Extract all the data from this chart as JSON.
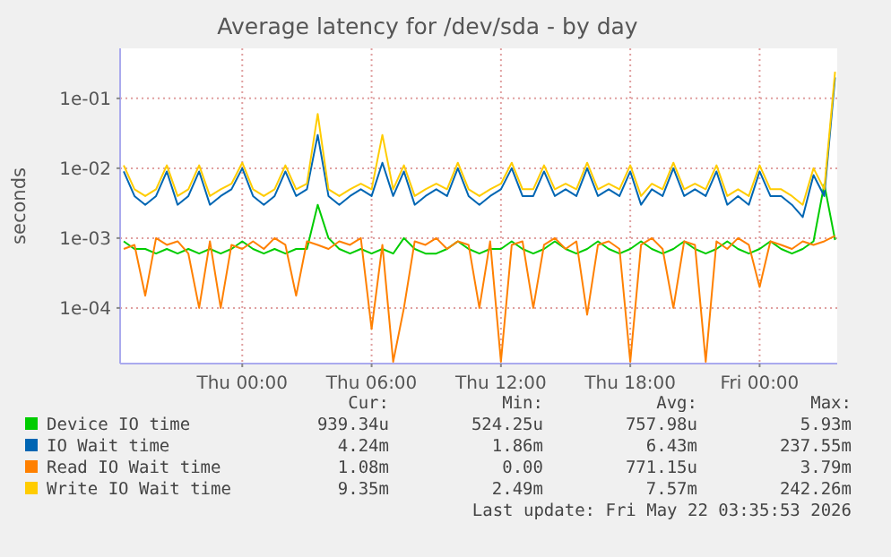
{
  "chart_data": {
    "type": "line",
    "title": "Average latency for /dev/sda - by day",
    "ylabel": "seconds",
    "log": "y",
    "grid": true,
    "legend": "bottom",
    "marker": "none",
    "line_style": "solid",
    "x": [
      "2026-05-20T18:30",
      "2026-05-20T19:00",
      "2026-05-20T19:30",
      "2026-05-20T20:00",
      "2026-05-20T20:30",
      "2026-05-20T21:00",
      "2026-05-20T21:30",
      "2026-05-20T22:00",
      "2026-05-20T22:30",
      "2026-05-20T23:00",
      "2026-05-20T23:30",
      "2026-05-21T00:00",
      "2026-05-21T00:30",
      "2026-05-21T01:00",
      "2026-05-21T01:30",
      "2026-05-21T02:00",
      "2026-05-21T02:30",
      "2026-05-21T03:00",
      "2026-05-21T03:30",
      "2026-05-21T04:00",
      "2026-05-21T04:30",
      "2026-05-21T05:00",
      "2026-05-21T05:30",
      "2026-05-21T06:00",
      "2026-05-21T06:30",
      "2026-05-21T07:00",
      "2026-05-21T07:30",
      "2026-05-21T08:00",
      "2026-05-21T08:30",
      "2026-05-21T09:00",
      "2026-05-21T09:30",
      "2026-05-21T10:00",
      "2026-05-21T10:30",
      "2026-05-21T11:00",
      "2026-05-21T11:30",
      "2026-05-21T12:00",
      "2026-05-21T12:30",
      "2026-05-21T13:00",
      "2026-05-21T13:30",
      "2026-05-21T14:00",
      "2026-05-21T14:30",
      "2026-05-21T15:00",
      "2026-05-21T15:30",
      "2026-05-21T16:00",
      "2026-05-21T16:30",
      "2026-05-21T17:00",
      "2026-05-21T17:30",
      "2026-05-21T18:00",
      "2026-05-21T18:30",
      "2026-05-21T19:00",
      "2026-05-21T19:30",
      "2026-05-21T20:00",
      "2026-05-21T20:30",
      "2026-05-21T21:00",
      "2026-05-21T21:30",
      "2026-05-21T22:00",
      "2026-05-21T22:30",
      "2026-05-21T23:00",
      "2026-05-21T23:30",
      "2026-05-22T00:00",
      "2026-05-22T00:30",
      "2026-05-22T01:00",
      "2026-05-22T01:30",
      "2026-05-22T02:00",
      "2026-05-22T02:30",
      "2026-05-22T03:00",
      "2026-05-22T03:30"
    ],
    "xlim": [
      "2026-05-20T18:20",
      "2026-05-22T03:36"
    ],
    "xticks": [
      {
        "value": "2026-05-21T00:00",
        "label": "Thu 00:00"
      },
      {
        "value": "2026-05-21T06:00",
        "label": "Thu 06:00"
      },
      {
        "value": "2026-05-21T12:00",
        "label": "Thu 12:00"
      },
      {
        "value": "2026-05-21T18:00",
        "label": "Thu 18:00"
      },
      {
        "value": "2026-05-22T00:00",
        "label": "Fri 00:00"
      }
    ],
    "ylim": [
      1.6e-05,
      0.52
    ],
    "yticks": [
      {
        "value": 0.0001,
        "label": "1e-04"
      },
      {
        "value": 0.001,
        "label": "1e-03"
      },
      {
        "value": 0.01,
        "label": "1e-02"
      },
      {
        "value": 0.1,
        "label": "1e-01"
      }
    ],
    "series": [
      {
        "name": "Device IO time",
        "color": "#00cc00",
        "values": [
          0.0009,
          0.0007,
          0.0007,
          0.0006,
          0.0007,
          0.0006,
          0.0007,
          0.0006,
          0.0007,
          0.0006,
          0.0007,
          0.0009,
          0.0007,
          0.0006,
          0.0007,
          0.0006,
          0.0007,
          0.0007,
          0.003,
          0.001,
          0.0007,
          0.0006,
          0.0007,
          0.0006,
          0.0007,
          0.0006,
          0.001,
          0.0007,
          0.0006,
          0.0006,
          0.0007,
          0.0009,
          0.0007,
          0.0006,
          0.0007,
          0.0007,
          0.0009,
          0.0007,
          0.0006,
          0.0007,
          0.0009,
          0.0007,
          0.0006,
          0.0007,
          0.0009,
          0.0007,
          0.0006,
          0.0007,
          0.0009,
          0.0007,
          0.0006,
          0.0007,
          0.0009,
          0.0007,
          0.0006,
          0.0007,
          0.0009,
          0.0007,
          0.0006,
          0.0007,
          0.0009,
          0.0007,
          0.0006,
          0.0007,
          0.0009,
          0.0059,
          0.00094
        ]
      },
      {
        "name": "IO Wait time",
        "color": "#0066b3",
        "values": [
          0.009,
          0.004,
          0.003,
          0.004,
          0.009,
          0.003,
          0.004,
          0.009,
          0.003,
          0.004,
          0.005,
          0.01,
          0.004,
          0.003,
          0.004,
          0.009,
          0.004,
          0.005,
          0.03,
          0.004,
          0.003,
          0.004,
          0.005,
          0.004,
          0.012,
          0.004,
          0.009,
          0.003,
          0.004,
          0.005,
          0.004,
          0.01,
          0.004,
          0.003,
          0.004,
          0.005,
          0.01,
          0.004,
          0.004,
          0.009,
          0.004,
          0.005,
          0.004,
          0.01,
          0.004,
          0.005,
          0.004,
          0.009,
          0.003,
          0.005,
          0.004,
          0.01,
          0.004,
          0.005,
          0.004,
          0.009,
          0.003,
          0.004,
          0.003,
          0.009,
          0.004,
          0.004,
          0.003,
          0.002,
          0.008,
          0.004,
          0.2
        ]
      },
      {
        "name": "Read IO Wait time",
        "color": "#ff8000",
        "values": [
          0.0007,
          0.0008,
          0.00015,
          0.001,
          0.0008,
          0.0009,
          0.0006,
          0.0001,
          0.0009,
          0.0001,
          0.0008,
          0.0007,
          0.0009,
          0.0007,
          0.001,
          0.0008,
          0.00015,
          0.0009,
          0.0008,
          0.0007,
          0.0009,
          0.0008,
          0.001,
          5e-05,
          0.0008,
          1.7e-05,
          0.0001,
          0.0009,
          0.0008,
          0.001,
          0.0007,
          0.0009,
          0.0008,
          0.0001,
          0.0009,
          1.7e-05,
          0.0008,
          0.0009,
          0.0001,
          0.0008,
          0.001,
          0.0007,
          0.0009,
          8e-05,
          0.0008,
          0.0009,
          0.0007,
          1.7e-05,
          0.0008,
          0.001,
          0.0007,
          0.0001,
          0.0009,
          0.0008,
          1.7e-05,
          0.0009,
          0.0007,
          0.001,
          0.0008,
          0.0002,
          0.0009,
          0.0008,
          0.0007,
          0.0009,
          0.0008,
          0.0009,
          0.00108
        ]
      },
      {
        "name": "Write IO Wait time",
        "color": "#ffcc00",
        "values": [
          0.011,
          0.005,
          0.004,
          0.005,
          0.011,
          0.004,
          0.005,
          0.011,
          0.004,
          0.005,
          0.006,
          0.012,
          0.005,
          0.004,
          0.005,
          0.011,
          0.005,
          0.006,
          0.06,
          0.005,
          0.004,
          0.005,
          0.006,
          0.005,
          0.03,
          0.005,
          0.011,
          0.004,
          0.005,
          0.006,
          0.005,
          0.012,
          0.005,
          0.004,
          0.005,
          0.006,
          0.012,
          0.005,
          0.005,
          0.011,
          0.005,
          0.006,
          0.005,
          0.012,
          0.005,
          0.006,
          0.005,
          0.011,
          0.004,
          0.006,
          0.005,
          0.012,
          0.005,
          0.006,
          0.005,
          0.011,
          0.004,
          0.005,
          0.004,
          0.011,
          0.005,
          0.005,
          0.004,
          0.003,
          0.01,
          0.005,
          0.24
        ]
      }
    ],
    "annotations": [
      "Cur:",
      "Min:",
      "Avg:",
      "Max:",
      "939.34u",
      "524.25u",
      "757.98u",
      "5.93m",
      "4.24m",
      "1.86m",
      "6.43m",
      "237.55m",
      "1.08m",
      "0.00",
      "771.15u",
      "3.79m",
      "9.35m",
      "2.49m",
      "7.57m",
      "242.26m",
      "Last update: Fri May 22 03:35:53 2026"
    ]
  }
}
